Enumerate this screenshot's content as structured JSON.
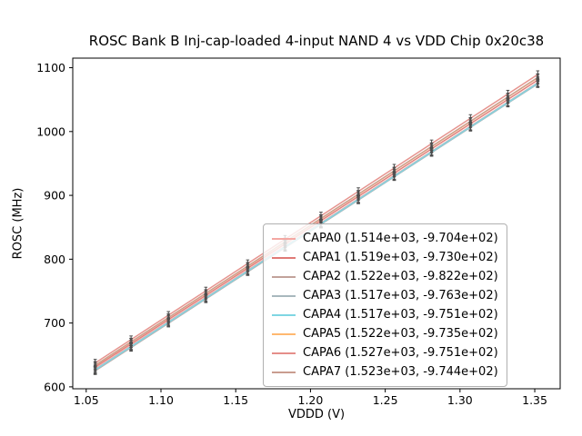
{
  "chart_data": {
    "type": "line",
    "title": "ROSC Bank B Inj-cap-loaded 4-input NAND 4 vs VDD Chip 0x20c38",
    "xlabel": "VDDD (V)",
    "ylabel": "ROSC (MHz)",
    "xlim": [
      1.041,
      1.367
    ],
    "ylim": [
      597,
      1115
    ],
    "xticks": [
      1.05,
      1.1,
      1.15,
      1.2,
      1.25,
      1.3,
      1.35
    ],
    "yticks": [
      600,
      700,
      800,
      900,
      1000,
      1100
    ],
    "x": [
      1.056,
      1.08,
      1.105,
      1.13,
      1.158,
      1.183,
      1.207,
      1.232,
      1.256,
      1.281,
      1.307,
      1.332,
      1.352
    ],
    "grid": false,
    "legend_position": "lower right inside axes",
    "fit_model": "ROSC = slope * VDDD + intercept",
    "series": [
      {
        "name": "CAPA0",
        "label": "CAPA0 (1.514e+03, -9.704e+02)",
        "slope": 1514,
        "intercept": -970.4,
        "color": "#f4a8a3"
      },
      {
        "name": "CAPA1",
        "label": "CAPA1 (1.519e+03, -9.730e+02)",
        "slope": 1519,
        "intercept": -973.0,
        "color": "#e07a76"
      },
      {
        "name": "CAPA2",
        "label": "CAPA2 (1.522e+03, -9.822e+02)",
        "slope": 1522,
        "intercept": -982.2,
        "color": "#c2a29b"
      },
      {
        "name": "CAPA3",
        "label": "CAPA3 (1.517e+03, -9.763e+02)",
        "slope": 1517,
        "intercept": -976.3,
        "color": "#a8b8bd"
      },
      {
        "name": "CAPA4",
        "label": "CAPA4 (1.517e+03, -9.751e+02)",
        "slope": 1517,
        "intercept": -975.1,
        "color": "#7fd6e3"
      },
      {
        "name": "CAPA5",
        "label": "CAPA5 (1.522e+03, -9.735e+02)",
        "slope": 1522,
        "intercept": -973.5,
        "color": "#ffb870"
      },
      {
        "name": "CAPA6",
        "label": "CAPA6 (1.527e+03, -9.751e+02)",
        "slope": 1527,
        "intercept": -975.1,
        "color": "#e58e89"
      },
      {
        "name": "CAPA7",
        "label": "CAPA7 (1.523e+03, -9.744e+02)",
        "slope": 1523,
        "intercept": -974.4,
        "color": "#c99d8f"
      }
    ],
    "errorbar_color": "#4d4d4d",
    "axes_color": "#000000",
    "background_color": "#ffffff"
  }
}
